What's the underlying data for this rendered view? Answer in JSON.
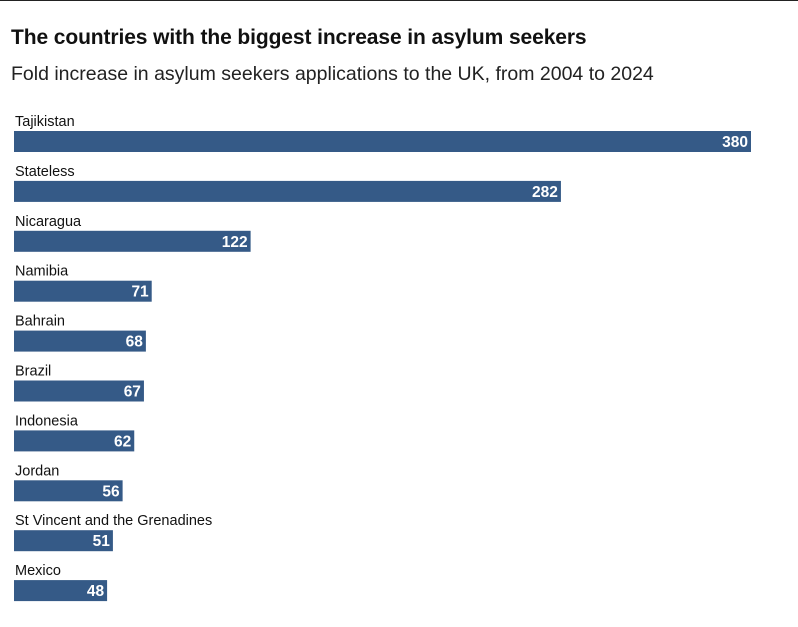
{
  "chart_data": {
    "type": "bar",
    "orientation": "horizontal",
    "title": "The countries with the biggest increase in asylum seekers",
    "subtitle": "Fold increase in asylum seekers applications to the UK, from 2004 to 2024",
    "categories": [
      "Tajikistan",
      "Stateless",
      "Nicaragua",
      "Namibia",
      "Bahrain",
      "Brazil",
      "Indonesia",
      "Jordan",
      "St Vincent and the Grenadines",
      "Mexico"
    ],
    "values": [
      380,
      282,
      122,
      71,
      68,
      67,
      62,
      56,
      51,
      48
    ],
    "xlabel": "",
    "ylabel": "",
    "xlim": [
      0,
      380
    ],
    "grid": false,
    "legend": "none",
    "bar_color": "#355a87",
    "label_color": "#ffffff"
  }
}
